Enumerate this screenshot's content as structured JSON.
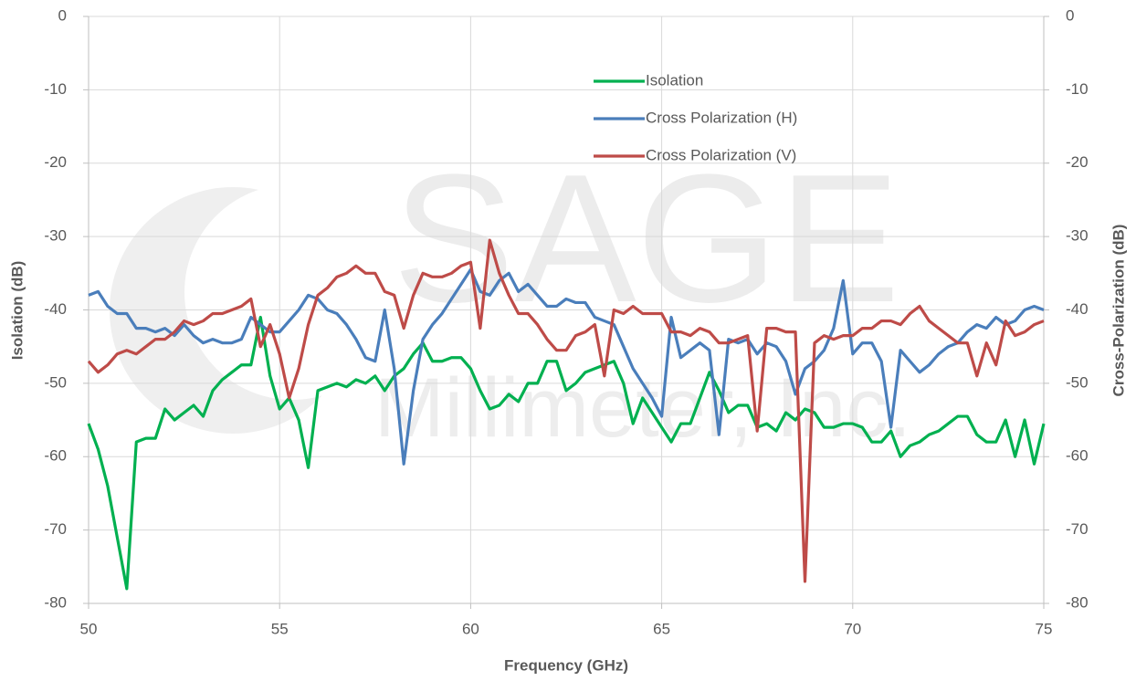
{
  "chart_data": {
    "type": "line",
    "xlabel": "Frequency (GHz)",
    "ylabel": "Isolation (dB)",
    "y2label": "Cross-Polarization (dB)",
    "watermark": [
      "SAGE",
      "Millimeter, Inc."
    ],
    "xlim": [
      50,
      75
    ],
    "xticks": [
      50,
      55,
      60,
      65,
      70,
      75
    ],
    "ylim": [
      -80,
      0
    ],
    "yticks": [
      -80,
      -70,
      -60,
      -50,
      -40,
      -30,
      -20,
      -10,
      0
    ],
    "y2lim": [
      -80,
      0
    ],
    "y2ticks": [
      -80,
      -70,
      -60,
      -50,
      -40,
      -30,
      -20,
      -10,
      0
    ],
    "grid": true,
    "legend": "upper center",
    "x": [
      50,
      50.25,
      50.5,
      50.75,
      51,
      51.25,
      51.5,
      51.75,
      52,
      52.25,
      52.5,
      52.75,
      53,
      53.25,
      53.5,
      53.75,
      54,
      54.25,
      54.5,
      54.75,
      55,
      55.25,
      55.5,
      55.75,
      56,
      56.25,
      56.5,
      56.75,
      57,
      57.25,
      57.5,
      57.75,
      58,
      58.25,
      58.5,
      58.75,
      59,
      59.25,
      59.5,
      59.75,
      60,
      60.25,
      60.5,
      60.75,
      61,
      61.25,
      61.5,
      61.75,
      62,
      62.25,
      62.5,
      62.75,
      63,
      63.25,
      63.5,
      63.75,
      64,
      64.25,
      64.5,
      64.75,
      65,
      65.25,
      65.5,
      65.75,
      66,
      66.25,
      66.5,
      66.75,
      67,
      67.25,
      67.5,
      67.75,
      68,
      68.25,
      68.5,
      68.75,
      69,
      69.25,
      69.5,
      69.75,
      70,
      70.25,
      70.5,
      70.75,
      71,
      71.25,
      71.5,
      71.75,
      72,
      72.25,
      72.5,
      72.75,
      73,
      73.25,
      73.5,
      73.75,
      74,
      74.25,
      74.5,
      74.75,
      75
    ],
    "series": [
      {
        "name": "Isolation",
        "color": "#00b050",
        "values": [
          -55.5,
          -59,
          -64,
          -71,
          -78,
          -58,
          -57.5,
          -57.5,
          -53.5,
          -55,
          -54,
          -53,
          -54.5,
          -51,
          -49.5,
          -48.5,
          -47.5,
          -47.5,
          -41,
          -49,
          -53.5,
          -52,
          -55,
          -61.5,
          -51,
          -50.5,
          -50,
          -50.5,
          -49.5,
          -50,
          -49,
          -51,
          -49,
          -48,
          -46,
          -44.5,
          -47,
          -47,
          -46.5,
          -46.5,
          -48,
          -51,
          -53.5,
          -53,
          -51.5,
          -52.5,
          -50,
          -50,
          -47,
          -47,
          -51,
          -50,
          -48.5,
          -48,
          -47.5,
          -47,
          -50,
          -55.5,
          -52,
          -54,
          -56,
          -58,
          -55.5,
          -55.5,
          -52,
          -48.5,
          -51,
          -54,
          -53,
          -53,
          -56,
          -55.5,
          -56.5,
          -54,
          -55,
          -53.5,
          -54,
          -56,
          -56,
          -55.5,
          -55.5,
          -56,
          -58,
          -58,
          -56.5,
          -60,
          -58.5,
          -58,
          -57,
          -56.5,
          -55.5,
          -54.5,
          -54.5,
          -57,
          -58,
          -58,
          -55,
          -60,
          -55,
          -61,
          -55.5
        ]
      },
      {
        "name": "Cross Polarization (H)",
        "color": "#4a7ebb",
        "axis": "y2",
        "values": [
          -38,
          -37.5,
          -39.5,
          -40.5,
          -40.5,
          -42.5,
          -42.5,
          -43,
          -42.5,
          -43.5,
          -42,
          -43.5,
          -44.5,
          -44,
          -44.5,
          -44.5,
          -44,
          -41,
          -42,
          -43,
          -43,
          -41.5,
          -40,
          -38,
          -38.5,
          -40,
          -40.5,
          -42,
          -44,
          -46.5,
          -47,
          -40,
          -48,
          -61,
          -51,
          -44,
          -42,
          -40.5,
          -38.5,
          -36.5,
          -34.5,
          -37.5,
          -38,
          -36,
          -35,
          -37.5,
          -36.5,
          -38,
          -39.5,
          -39.5,
          -38.5,
          -39,
          -39,
          -41,
          -41.5,
          -42,
          -45,
          -48,
          -50,
          -52,
          -54.5,
          -41,
          -46.5,
          -45.5,
          -44.5,
          -45.5,
          -57,
          -44,
          -44.5,
          -44,
          -46,
          -44.5,
          -45,
          -47,
          -51.5,
          -48,
          -47,
          -45.5,
          -42.5,
          -36,
          -46,
          -44.5,
          -44.5,
          -47,
          -56,
          -45.5,
          -47,
          -48.5,
          -47.5,
          -46,
          -45,
          -44.5,
          -43,
          -42,
          -42.5,
          -41,
          -42,
          -41.5,
          -40,
          -39.5,
          -40
        ]
      },
      {
        "name": "Cross Polarization (V)",
        "color": "#be4b48",
        "axis": "y2",
        "values": [
          -47,
          -48.5,
          -47.5,
          -46,
          -45.5,
          -46,
          -45,
          -44,
          -44,
          -43,
          -41.5,
          -42,
          -41.5,
          -40.5,
          -40.5,
          -40,
          -39.5,
          -38.5,
          -45,
          -42,
          -46,
          -52,
          -48,
          -42,
          -38,
          -37,
          -35.5,
          -35,
          -34,
          -35,
          -35,
          -37.5,
          -38,
          -42.5,
          -38,
          -35,
          -35.5,
          -35.5,
          -35,
          -34,
          -33.5,
          -42.5,
          -30.5,
          -35,
          -38,
          -40.5,
          -40.5,
          -42,
          -44,
          -45.5,
          -45.5,
          -43.5,
          -43,
          -42,
          -49,
          -40,
          -40.5,
          -39.5,
          -40.5,
          -40.5,
          -40.5,
          -43,
          -43,
          -43.5,
          -42.5,
          -43,
          -44.5,
          -44.5,
          -44,
          -43.5,
          -56.5,
          -42.5,
          -42.5,
          -43,
          -43,
          -77,
          -44.5,
          -43.5,
          -44,
          -43.5,
          -43.5,
          -42.5,
          -42.5,
          -41.5,
          -41.5,
          -42,
          -40.5,
          -39.5,
          -41.5,
          -42.5,
          -43.5,
          -44.5,
          -44.5,
          -49,
          -44.5,
          -47.5,
          -41.5,
          -43.5,
          -43,
          -42,
          -41.5
        ]
      }
    ]
  }
}
